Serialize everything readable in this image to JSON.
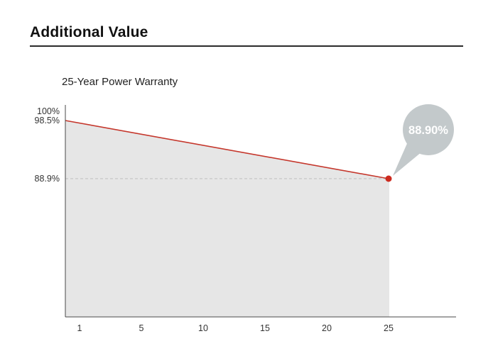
{
  "header": {
    "title": "Additional Value"
  },
  "chart_data": {
    "type": "area",
    "title": "25-Year Power Warranty",
    "x_tick_labels": [
      "1",
      "5",
      "10",
      "15",
      "20",
      "25"
    ],
    "x_tick_values": [
      1,
      5,
      10,
      15,
      20,
      25
    ],
    "y_tick_labels": [
      "100%",
      "98.5%",
      "88.9%"
    ],
    "y_tick_values": [
      100,
      98.5,
      88.9
    ],
    "series": [
      {
        "name": "power-warranty-output",
        "points": [
          {
            "x": 1,
            "y": 98.5
          },
          {
            "x": 25,
            "y": 88.9
          }
        ]
      }
    ],
    "start_value_label": "98.5%",
    "end_value_label": "88.9%",
    "callout_label": "88.90%",
    "xlabel": "",
    "ylabel": "",
    "grid": "vertical",
    "legend": "none",
    "colors": {
      "line": "#c5372c",
      "dot": "#cc2a1e",
      "area": "#e6e6e6",
      "grid": "#cfcfcf",
      "dashed": "#bdbdbd",
      "axis": "#4a4a4a",
      "callout_bubble": "#c3c9cb",
      "callout_text": "#ffffff"
    }
  }
}
